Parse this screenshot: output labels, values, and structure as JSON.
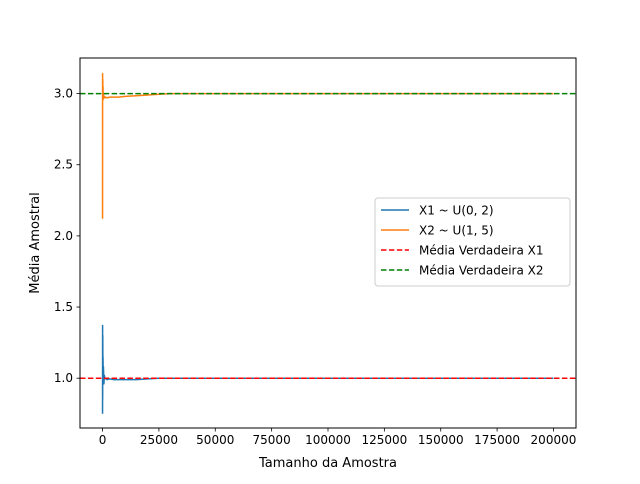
{
  "chart_data": {
    "type": "line",
    "title": "",
    "xlabel": "Tamanho da Amostra",
    "ylabel": "Média Amostral",
    "xlim": [
      -10000,
      210000
    ],
    "ylim": [
      0.65,
      3.25
    ],
    "xticks": [
      0,
      25000,
      50000,
      75000,
      100000,
      125000,
      150000,
      175000,
      200000
    ],
    "xtick_labels": [
      "0",
      "25000",
      "50000",
      "75000",
      "100000",
      "125000",
      "150000",
      "175000",
      "200000"
    ],
    "yticks": [
      1.0,
      1.5,
      2.0,
      2.5,
      3.0
    ],
    "ytick_labels": [
      "1.0",
      "1.5",
      "2.0",
      "2.5",
      "3.0"
    ],
    "grid": false,
    "legend_position": "center-right",
    "series": [
      {
        "name": "X1 ~ U(0, 2)",
        "color": "#1f77b4",
        "style": "solid",
        "x": [
          1,
          20,
          50,
          100,
          150,
          200,
          300,
          400,
          600,
          800,
          1000,
          1500,
          2000,
          3000,
          5000,
          7000,
          10000,
          15000,
          20000,
          25000,
          30000,
          40000,
          50000,
          75000,
          100000,
          125000,
          150000,
          175000,
          200000
        ],
        "y": [
          0.75,
          1.37,
          0.85,
          1.3,
          1.05,
          1.15,
          0.98,
          1.08,
          0.96,
          1.02,
          1.0,
          0.995,
          0.99,
          0.995,
          0.99,
          0.99,
          0.99,
          0.99,
          0.995,
          1.0,
          1.0,
          1.0,
          1.0,
          1.0,
          1.0,
          1.0,
          1.0,
          1.0,
          1.0
        ]
      },
      {
        "name": "X2 ~ U(1, 5)",
        "color": "#ff7f0e",
        "style": "solid",
        "x": [
          1,
          20,
          50,
          100,
          150,
          200,
          300,
          400,
          600,
          800,
          1000,
          1500,
          2000,
          3000,
          5000,
          7000,
          10000,
          15000,
          20000,
          25000,
          30000,
          40000,
          50000,
          75000,
          100000,
          125000,
          150000,
          175000,
          200000
        ],
        "y": [
          2.12,
          3.14,
          2.95,
          3.1,
          2.97,
          3.05,
          2.96,
          3.0,
          2.97,
          2.98,
          2.97,
          2.975,
          2.97,
          2.975,
          2.975,
          2.975,
          2.98,
          2.985,
          2.99,
          2.995,
          3.0,
          3.0,
          3.0,
          3.0,
          3.0,
          3.0,
          3.0,
          3.0,
          3.0
        ]
      },
      {
        "name": "Média Verdadeira X1",
        "color": "#ff0000",
        "style": "dashed",
        "hline": 1.0
      },
      {
        "name": "Média Verdadeira X2",
        "color": "#008000",
        "style": "dashed",
        "hline": 3.0
      }
    ]
  }
}
